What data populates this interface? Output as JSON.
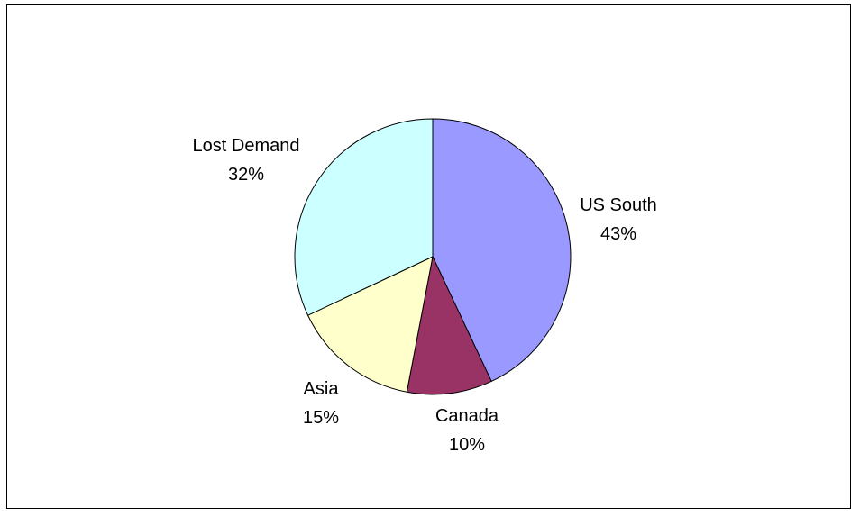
{
  "chart_data": {
    "type": "pie",
    "title": "",
    "slices": [
      {
        "label": "US South",
        "percent_label": "43%",
        "value": 43,
        "color": "#9999ff"
      },
      {
        "label": "Canada",
        "percent_label": "10%",
        "value": 10,
        "color": "#993366"
      },
      {
        "label": "Asia",
        "percent_label": "15%",
        "value": 15,
        "color": "#ffffcc"
      },
      {
        "label": "Lost Demand",
        "percent_label": "32%",
        "value": 32,
        "color": "#ccffff"
      }
    ],
    "start_angle_deg": 0,
    "direction": "clockwise",
    "legend": "none",
    "data_labels": "outside"
  }
}
